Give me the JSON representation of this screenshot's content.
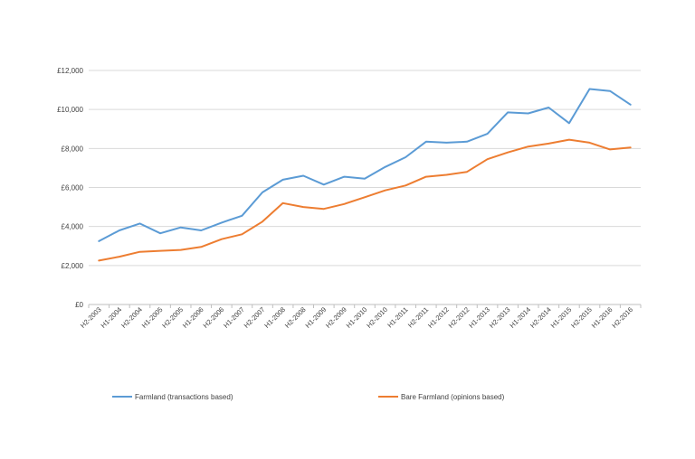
{
  "chart_data": {
    "type": "line",
    "title": "",
    "xlabel": "",
    "ylabel": "",
    "ylim": [
      0,
      12000
    ],
    "yticks": [
      0,
      2000,
      4000,
      6000,
      8000,
      10000,
      12000
    ],
    "ytick_labels": [
      "£0",
      "£2,000",
      "£4,000",
      "£6,000",
      "£8,000",
      "£10,000",
      "£12,000"
    ],
    "grid": "horizontal",
    "legend_position": "bottom",
    "categories": [
      "H2-2003",
      "H1-2004",
      "H2-2004",
      "H1-2005",
      "H2-2005",
      "H1-2006",
      "H2-2006",
      "H1-2007",
      "H2-2007",
      "H1-2008",
      "H2-2008",
      "H1-2009",
      "H2-2009",
      "H1-2010",
      "H2-2010",
      "H1-2011",
      "H2-2011",
      "H1-2012",
      "H2-2012",
      "H1-2013",
      "H2-2013",
      "H1-2014",
      "H2-2014",
      "H1-2015",
      "H2-2015",
      "H1-2016",
      "H2-2016"
    ],
    "series": [
      {
        "name": "Farmland (transactions based)",
        "color": "#5b9bd5",
        "values": [
          3250,
          3800,
          4150,
          3650,
          3950,
          3800,
          4200,
          4550,
          5750,
          6400,
          6600,
          6150,
          6550,
          6450,
          7050,
          7550,
          8350,
          8300,
          8350,
          8750,
          9850,
          9800,
          10100,
          9300,
          11050,
          10950,
          10250
        ]
      },
      {
        "name": "Bare Farmland (opinions based)",
        "color": "#ed7d31",
        "values": [
          2250,
          2450,
          2700,
          2750,
          2800,
          2950,
          3350,
          3600,
          4250,
          5200,
          5000,
          4900,
          5150,
          5500,
          5850,
          6100,
          6550,
          6650,
          6800,
          7450,
          7800,
          8100,
          8250,
          8450,
          8300,
          7950,
          8050
        ]
      }
    ]
  }
}
